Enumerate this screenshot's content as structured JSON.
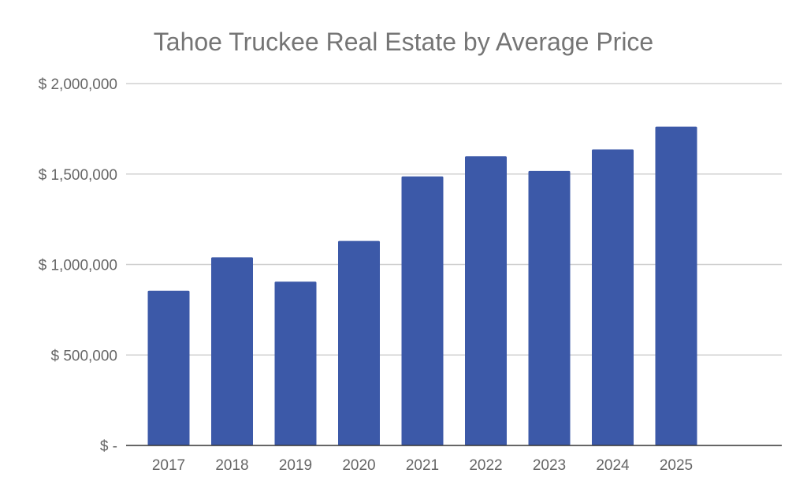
{
  "chart_data": {
    "type": "bar",
    "title": "Tahoe Truckee Real Estate by Average Price",
    "xlabel": "",
    "ylabel": "",
    "categories": [
      "2017",
      "2018",
      "2019",
      "2020",
      "2021",
      "2022",
      "2023",
      "2024",
      "2025"
    ],
    "values": [
      855000,
      1040000,
      905000,
      1130000,
      1487000,
      1598000,
      1517000,
      1636000,
      1762000
    ],
    "ylim": [
      0,
      2000000
    ],
    "yticks": [
      0,
      500000,
      1000000,
      1500000,
      2000000
    ],
    "ytick_labels": [
      "$ -",
      "$ 500,000",
      "$ 1,000,000",
      "$ 1,500,000",
      "$ 2,000,000"
    ],
    "grid": true,
    "legend": "none",
    "colors": {
      "bar": "#3c59a8",
      "grid": "#d0d0d0",
      "axis": "#333333",
      "title": "#757575",
      "tick_text": "#666666"
    }
  }
}
